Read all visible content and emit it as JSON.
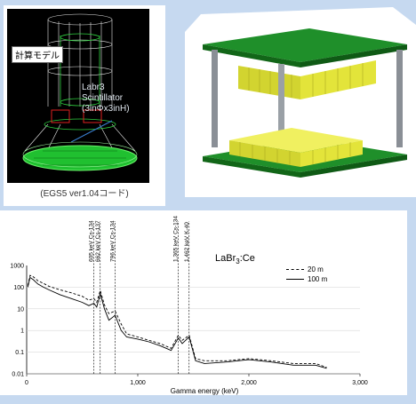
{
  "model": {
    "label": "計算モデル",
    "scintillator_name": "Labr3",
    "scintillator_type": "Scintillator",
    "scintillator_size": "(3inΦx3inH)",
    "caption": "(EGS5 ver1.04コード)"
  },
  "spectrum": {
    "title_main": "LaBr",
    "title_sub": "3",
    "title_suffix": ":Ce",
    "legend": [
      "20 m",
      "100 m"
    ],
    "y_ticks": [
      "1000",
      "100",
      "10",
      "1",
      "0.1",
      "0.01"
    ],
    "x_ticks": [
      "0",
      "1,000",
      "2,000",
      "3,000"
    ],
    "xlabel": "Gamma energy  (keV)",
    "annotations": [
      {
        "energy": 605,
        "label": "605 keV Cs-134"
      },
      {
        "energy": 662,
        "label": "662 keV Cs-137"
      },
      {
        "energy": 796,
        "label": "796 keV Cs-134"
      },
      {
        "energy": 1365,
        "label": "1,365 keV Cs-134"
      },
      {
        "energy": 1462,
        "label": "1,462 keV K-40"
      }
    ]
  },
  "colors": {
    "page_bg": "#c6d9f0",
    "board_green": "#1f8f2a",
    "crystal_yellow": "#e3e43a",
    "pillar_gray": "#8a8f96",
    "wire_green": "#30d040",
    "wire_white": "#e8e8e8"
  },
  "chart_data": {
    "type": "line",
    "xlabel": "Gamma energy  (keV)",
    "ylabel": "",
    "xlim": [
      0,
      3000
    ],
    "ylim": [
      0.01,
      1000
    ],
    "yscale": "log",
    "series": [
      {
        "name": "20 m",
        "style": "dashed",
        "x": [
          10,
          30,
          60,
          100,
          150,
          200,
          300,
          400,
          500,
          560,
          605,
          630,
          662,
          700,
          740,
          796,
          850,
          900,
          1000,
          1100,
          1200,
          1300,
          1365,
          1400,
          1462,
          1520,
          1600,
          1800,
          2000,
          2200,
          2400,
          2600,
          2700
        ],
        "y": [
          120,
          350,
          300,
          200,
          150,
          110,
          75,
          55,
          38,
          25,
          30,
          20,
          70,
          15,
          6,
          8,
          2,
          0.7,
          0.5,
          0.35,
          0.25,
          0.15,
          0.6,
          0.35,
          0.6,
          0.05,
          0.04,
          0.04,
          0.05,
          0.04,
          0.03,
          0.03,
          0.02
        ]
      },
      {
        "name": "100 m",
        "style": "solid",
        "x": [
          10,
          30,
          60,
          100,
          150,
          200,
          300,
          400,
          500,
          560,
          605,
          630,
          662,
          700,
          740,
          796,
          850,
          900,
          1000,
          1100,
          1200,
          1300,
          1365,
          1400,
          1462,
          1520,
          1600,
          1800,
          2000,
          2200,
          2400,
          2600,
          2700
        ],
        "y": [
          100,
          280,
          220,
          140,
          100,
          75,
          45,
          30,
          20,
          14,
          18,
          12,
          50,
          10,
          3,
          5,
          1,
          0.5,
          0.4,
          0.3,
          0.2,
          0.12,
          0.45,
          0.25,
          0.5,
          0.04,
          0.03,
          0.035,
          0.045,
          0.035,
          0.025,
          0.025,
          0.018
        ]
      }
    ]
  }
}
